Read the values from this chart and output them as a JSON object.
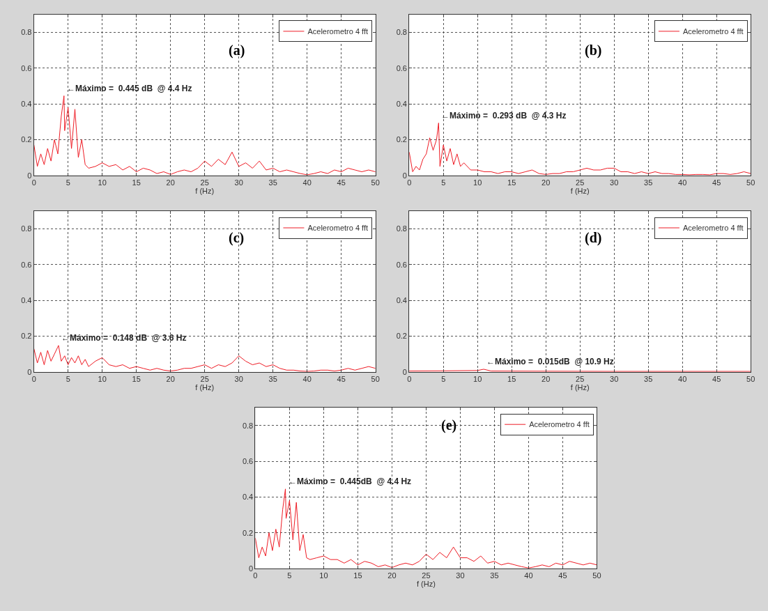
{
  "chart_data": [
    {
      "type": "line",
      "title": "(a)",
      "xlabel": "f (Hz)",
      "xlim": [
        0,
        50
      ],
      "xticks": [
        0,
        5,
        10,
        15,
        20,
        25,
        30,
        35,
        40,
        45,
        50
      ],
      "ylim": [
        0,
        0.9
      ],
      "yticks": [
        0,
        0.2,
        0.4,
        0.6,
        0.8
      ],
      "grid": true,
      "legend": "top right",
      "annotations": [
        {
          "text": "←Máximo =  0.445 dB  @ 4.4 Hz",
          "x": 4.4,
          "y": 0.445
        }
      ],
      "series": [
        {
          "name": "Acelerometro 4 fft",
          "color": "#ee1c25",
          "x": [
            0,
            0.5,
            1,
            1.5,
            2,
            2.5,
            3,
            3.5,
            4,
            4.4,
            4.5,
            5,
            5.5,
            6,
            6.5,
            7,
            7.5,
            8,
            9,
            10,
            11,
            12,
            13,
            14,
            15,
            16,
            17,
            18,
            19,
            20,
            21,
            22,
            23,
            24,
            25,
            26,
            27,
            28,
            29,
            30,
            31,
            32,
            33,
            34,
            35,
            36,
            37,
            38,
            39,
            40,
            41,
            42,
            43,
            44,
            45,
            46,
            47,
            48,
            49,
            50
          ],
          "values": [
            0.17,
            0.05,
            0.12,
            0.06,
            0.15,
            0.08,
            0.2,
            0.12,
            0.33,
            0.445,
            0.25,
            0.38,
            0.15,
            0.37,
            0.1,
            0.2,
            0.06,
            0.04,
            0.05,
            0.07,
            0.05,
            0.06,
            0.03,
            0.05,
            0.02,
            0.04,
            0.03,
            0.01,
            0.02,
            0.005,
            0.02,
            0.03,
            0.02,
            0.04,
            0.08,
            0.05,
            0.09,
            0.06,
            0.13,
            0.05,
            0.07,
            0.04,
            0.08,
            0.03,
            0.04,
            0.02,
            0.03,
            0.02,
            0.01,
            0.003,
            0.01,
            0.02,
            0.01,
            0.03,
            0.02,
            0.04,
            0.03,
            0.02,
            0.03,
            0.02
          ]
        }
      ]
    },
    {
      "type": "line",
      "title": "(b)",
      "xlabel": "f (Hz)",
      "xlim": [
        0,
        50
      ],
      "xticks": [
        0,
        5,
        10,
        15,
        20,
        25,
        30,
        35,
        40,
        45,
        50
      ],
      "ylim": [
        0,
        0.9
      ],
      "yticks": [
        0,
        0.2,
        0.4,
        0.6,
        0.8
      ],
      "grid": true,
      "legend": "top right",
      "annotations": [
        {
          "text": "←Máximo =  0.293 dB  @ 4.3 Hz",
          "x": 4.3,
          "y": 0.293
        }
      ],
      "series": [
        {
          "name": "Acelerometro 4 fft",
          "color": "#ee1c25",
          "x": [
            0,
            0.5,
            1,
            1.5,
            2,
            2.5,
            3,
            3.5,
            4,
            4.3,
            4.5,
            5,
            5.5,
            6,
            6.5,
            7,
            7.5,
            8,
            9,
            10,
            11,
            12,
            13,
            14,
            15,
            16,
            17,
            18,
            19,
            20,
            21,
            22,
            23,
            24,
            25,
            26,
            27,
            28,
            29,
            30,
            31,
            32,
            33,
            34,
            35,
            36,
            37,
            38,
            39,
            40,
            41,
            42,
            43,
            44,
            45,
            46,
            47,
            48,
            49,
            50
          ],
          "values": [
            0.13,
            0.02,
            0.05,
            0.03,
            0.09,
            0.12,
            0.21,
            0.14,
            0.2,
            0.293,
            0.05,
            0.17,
            0.08,
            0.15,
            0.06,
            0.12,
            0.05,
            0.07,
            0.03,
            0.03,
            0.02,
            0.02,
            0.01,
            0.02,
            0.02,
            0.01,
            0.02,
            0.03,
            0.01,
            0.005,
            0.01,
            0.01,
            0.02,
            0.02,
            0.03,
            0.04,
            0.03,
            0.03,
            0.04,
            0.04,
            0.02,
            0.02,
            0.01,
            0.02,
            0.01,
            0.02,
            0.01,
            0.01,
            0.005,
            0.005,
            0.003,
            0.005,
            0.005,
            0.003,
            0.01,
            0.01,
            0.005,
            0.01,
            0.02,
            0.01
          ]
        }
      ]
    },
    {
      "type": "line",
      "title": "(c)",
      "xlabel": "f (Hz)",
      "xlim": [
        0,
        50
      ],
      "xticks": [
        0,
        5,
        10,
        15,
        20,
        25,
        30,
        35,
        40,
        45,
        50
      ],
      "ylim": [
        0,
        0.9
      ],
      "yticks": [
        0,
        0.2,
        0.4,
        0.6,
        0.8
      ],
      "grid": true,
      "legend": "top right",
      "annotations": [
        {
          "text": "←Máximo =  0.148 dB  @ 3.6 Hz",
          "x": 3.6,
          "y": 0.148
        }
      ],
      "series": [
        {
          "name": "Acelerometro 4 fft",
          "color": "#ee1c25",
          "x": [
            0,
            0.5,
            1,
            1.5,
            2,
            2.5,
            3,
            3.6,
            4,
            4.5,
            5,
            5.5,
            6,
            6.5,
            7,
            7.5,
            8,
            9,
            10,
            11,
            12,
            13,
            14,
            15,
            16,
            17,
            18,
            19,
            20,
            21,
            22,
            23,
            24,
            25,
            26,
            27,
            28,
            29,
            30,
            31,
            32,
            33,
            34,
            35,
            36,
            37,
            38,
            39,
            40,
            41,
            42,
            43,
            44,
            45,
            46,
            47,
            48,
            49,
            50
          ],
          "values": [
            0.13,
            0.05,
            0.11,
            0.04,
            0.12,
            0.06,
            0.1,
            0.148,
            0.06,
            0.09,
            0.04,
            0.08,
            0.05,
            0.09,
            0.04,
            0.07,
            0.03,
            0.06,
            0.08,
            0.04,
            0.03,
            0.04,
            0.02,
            0.03,
            0.02,
            0.01,
            0.02,
            0.01,
            0.005,
            0.01,
            0.02,
            0.02,
            0.03,
            0.04,
            0.02,
            0.04,
            0.03,
            0.05,
            0.09,
            0.06,
            0.04,
            0.05,
            0.03,
            0.04,
            0.02,
            0.01,
            0.01,
            0.005,
            0.003,
            0.005,
            0.01,
            0.01,
            0.005,
            0.01,
            0.02,
            0.01,
            0.02,
            0.03,
            0.02
          ]
        }
      ]
    },
    {
      "type": "line",
      "title": "(d)",
      "xlabel": "f (Hz)",
      "xlim": [
        0,
        50
      ],
      "xticks": [
        0,
        5,
        10,
        15,
        20,
        25,
        30,
        35,
        40,
        45,
        50
      ],
      "ylim": [
        0,
        0.9
      ],
      "yticks": [
        0,
        0.2,
        0.4,
        0.6,
        0.8
      ],
      "grid": true,
      "legend": "top right",
      "annotations": [
        {
          "text": "←Máximo =  0.015dB  @ 10.9 Hz",
          "x": 10.9,
          "y": 0.015
        }
      ],
      "series": [
        {
          "name": "Acelerometro 4 fft",
          "color": "#ee1c25",
          "x": [
            0,
            5,
            10,
            10.9,
            12,
            20,
            30,
            40,
            50
          ],
          "values": [
            0.005,
            0.006,
            0.008,
            0.015,
            0.005,
            0.004,
            0.003,
            0.003,
            0.003
          ]
        }
      ]
    },
    {
      "type": "line",
      "title": "(e)",
      "xlabel": "f (Hz)",
      "xlim": [
        0,
        50
      ],
      "xticks": [
        0,
        5,
        10,
        15,
        20,
        25,
        30,
        35,
        40,
        45,
        50
      ],
      "ylim": [
        0,
        0.9
      ],
      "yticks": [
        0,
        0.2,
        0.4,
        0.6,
        0.8
      ],
      "grid": true,
      "legend": "top right",
      "annotations": [
        {
          "text": "←Máximo =  0.445dB  @ 4.4 Hz",
          "x": 4.4,
          "y": 0.445
        }
      ],
      "series": [
        {
          "name": "Acelerometro 4 fft",
          "color": "#ee1c25",
          "x": [
            0,
            0.5,
            1,
            1.5,
            2,
            2.5,
            3,
            3.5,
            4,
            4.4,
            4.5,
            5,
            5.5,
            6,
            6.5,
            7,
            7.5,
            8,
            9,
            10,
            11,
            12,
            13,
            14,
            15,
            16,
            17,
            18,
            19,
            20,
            21,
            22,
            23,
            24,
            25,
            26,
            27,
            28,
            29,
            30,
            31,
            32,
            33,
            34,
            35,
            36,
            37,
            38,
            39,
            40,
            41,
            42,
            43,
            44,
            45,
            46,
            47,
            48,
            49,
            50
          ],
          "values": [
            0.17,
            0.06,
            0.12,
            0.07,
            0.2,
            0.1,
            0.22,
            0.12,
            0.33,
            0.445,
            0.28,
            0.38,
            0.16,
            0.37,
            0.1,
            0.19,
            0.06,
            0.05,
            0.06,
            0.07,
            0.05,
            0.05,
            0.03,
            0.05,
            0.02,
            0.04,
            0.03,
            0.01,
            0.02,
            0.005,
            0.02,
            0.03,
            0.02,
            0.04,
            0.08,
            0.05,
            0.09,
            0.06,
            0.12,
            0.06,
            0.06,
            0.04,
            0.07,
            0.03,
            0.04,
            0.02,
            0.03,
            0.02,
            0.01,
            0.003,
            0.01,
            0.02,
            0.01,
            0.03,
            0.02,
            0.04,
            0.03,
            0.02,
            0.03,
            0.02
          ]
        }
      ]
    }
  ]
}
